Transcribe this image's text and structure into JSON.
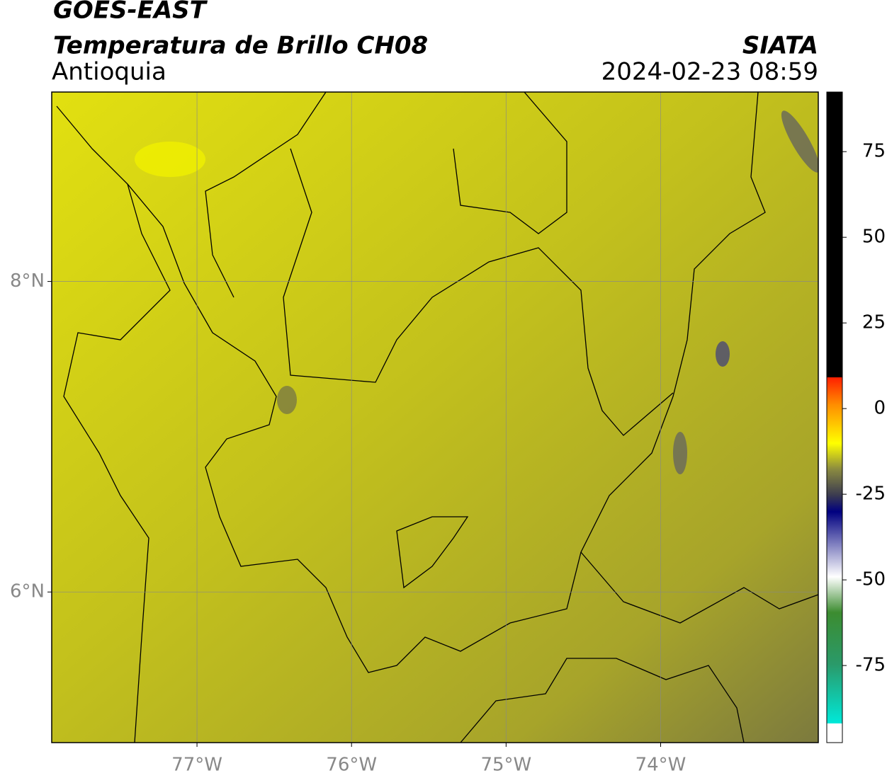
{
  "header": {
    "title": "GOES-EAST",
    "subtitle": "Temperatura de Brillo CH08",
    "region": "Antioquia",
    "source": "SIATA",
    "datetime": "2024-02-23 08:59"
  },
  "map": {
    "xlim": [
      -77.94,
      -72.98
    ],
    "ylim": [
      5.03,
      9.22
    ],
    "xticks": [
      {
        "value": -77,
        "label": "77°W"
      },
      {
        "value": -76,
        "label": "76°W"
      },
      {
        "value": -75,
        "label": "75°W"
      },
      {
        "value": -74,
        "label": "74°W"
      }
    ],
    "yticks": [
      {
        "value": 8,
        "label": "8°N"
      },
      {
        "value": 6,
        "label": "6°N"
      }
    ],
    "grid": true
  },
  "colorbar": {
    "lim": [
      -97.5,
      92.4
    ],
    "ticks": [
      75,
      50,
      25,
      0,
      -25,
      -50,
      -75
    ]
  }
}
